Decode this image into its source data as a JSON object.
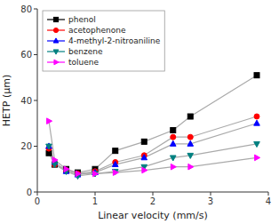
{
  "chart_data": {
    "type": "line",
    "xlabel": "Linear velocity (mm/s)",
    "ylabel": "HETP (μm)",
    "x": [
      0.2,
      0.3,
      0.5,
      0.7,
      1.0,
      1.35,
      1.85,
      2.35,
      2.65,
      3.8
    ],
    "series": [
      {
        "name": "phenol",
        "color": "black",
        "marker": "square",
        "values": [
          17,
          12,
          10,
          8.5,
          10,
          18,
          22,
          27,
          33,
          51
        ]
      },
      {
        "name": "acetophenone",
        "color": "red",
        "marker": "circle",
        "values": [
          19,
          12,
          9.5,
          8,
          9,
          13,
          16,
          24,
          24,
          33
        ]
      },
      {
        "name": "4-methyl-2-nitroaniline",
        "color": "blue",
        "marker": "triangle-up",
        "values": [
          20,
          13,
          9,
          7.5,
          8.5,
          12,
          15,
          21,
          21,
          30
        ]
      },
      {
        "name": "benzene",
        "color": "teal",
        "marker": "triangle-down",
        "values": [
          20,
          12,
          9,
          7,
          8,
          9,
          11,
          15,
          16,
          21
        ]
      },
      {
        "name": "toluene",
        "color": "magenta",
        "marker": "triangle-right",
        "values": [
          31,
          14,
          10,
          8,
          8,
          8.5,
          9.5,
          11,
          11,
          15
        ]
      }
    ],
    "color": "#aaaaaa",
    "xlim": [
      0,
      4
    ],
    "ylim": [
      0,
      80
    ],
    "xticks": [
      0,
      1,
      2,
      3,
      4
    ],
    "yticks": [
      0,
      20,
      40,
      60,
      80
    ],
    "grid": false,
    "legend": "upper left"
  }
}
